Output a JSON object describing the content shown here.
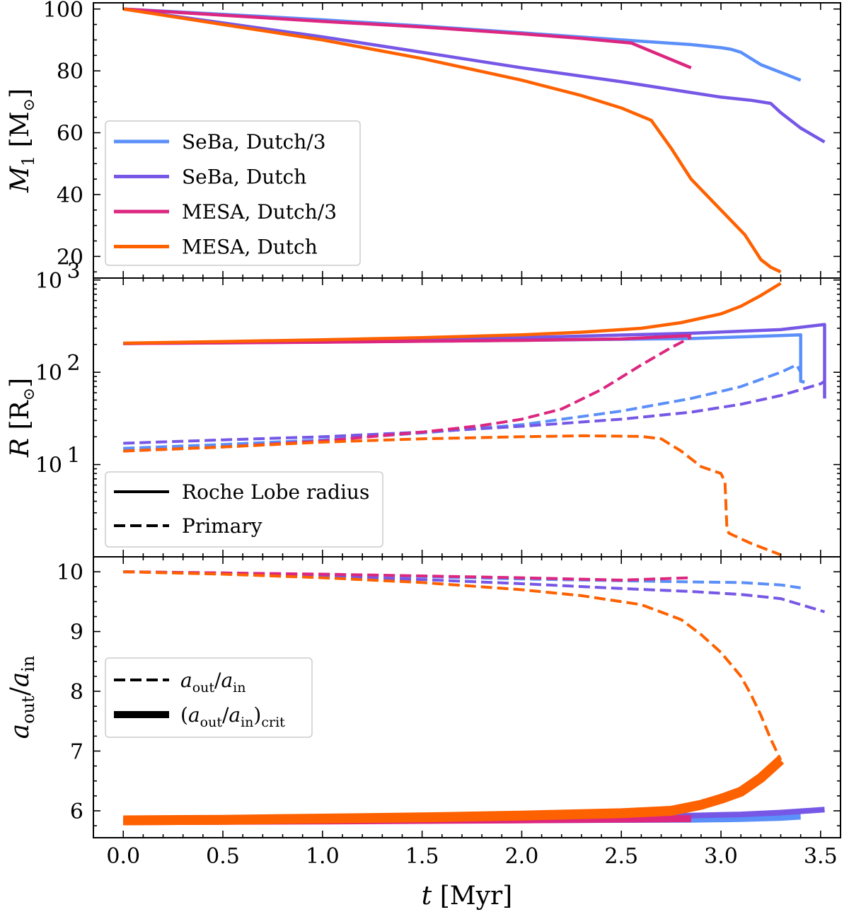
{
  "colors": {
    "seba_dutch3": "#5b8ff9",
    "seba_dutch": "#7657e6",
    "mesa_dutch3": "#dc267f",
    "mesa_dutch": "#fe6100"
  },
  "chart_data": [
    {
      "panel": "top",
      "type": "line",
      "ylabel": "M_1 [M_⊙]",
      "ylabel_main": "M",
      "ylabel_sub": "1",
      "ylabel_unit_open": " [M",
      "ylabel_unit_sub": "⊙",
      "ylabel_unit_close": "]",
      "xlim": [
        -0.15,
        3.6
      ],
      "ylim": [
        13,
        102
      ],
      "yscale": "linear",
      "yticks": [
        20,
        40,
        60,
        80,
        100
      ],
      "ytick_labels": [
        "20",
        "40",
        "60",
        "80",
        "100"
      ],
      "legend": {
        "location": "center-left",
        "entries": [
          {
            "label": "SeBa, Dutch/3",
            "series": "seba_dutch3"
          },
          {
            "label": "SeBa, Dutch",
            "series": "seba_dutch"
          },
          {
            "label": "MESA, Dutch/3",
            "series": "mesa_dutch3"
          },
          {
            "label": "MESA, Dutch",
            "series": "mesa_dutch"
          }
        ]
      },
      "series": [
        {
          "name": "SeBa, Dutch/3",
          "key": "seba_dutch3",
          "style": "solid",
          "x": [
            0,
            0.5,
            1.0,
            1.5,
            2.0,
            2.5,
            2.85,
            3.0,
            3.05,
            3.1,
            3.2,
            3.3,
            3.4
          ],
          "y": [
            100,
            98.3,
            96.5,
            94.5,
            92.3,
            90.0,
            88.5,
            87.5,
            87.0,
            86.0,
            82.0,
            79.5,
            77
          ]
        },
        {
          "name": "SeBa, Dutch",
          "key": "seba_dutch",
          "style": "solid",
          "x": [
            0,
            0.5,
            1.0,
            1.5,
            2.0,
            2.5,
            2.8,
            3.0,
            3.15,
            3.25,
            3.3,
            3.4,
            3.52
          ],
          "y": [
            100,
            95.5,
            91,
            86,
            81,
            76.5,
            73.5,
            71.5,
            70.5,
            69.5,
            66.5,
            61.5,
            57
          ]
        },
        {
          "name": "MESA, Dutch/3",
          "key": "mesa_dutch3",
          "style": "solid",
          "x": [
            0,
            0.5,
            1.0,
            1.5,
            2.0,
            2.3,
            2.55,
            2.85
          ],
          "y": [
            100,
            98,
            96,
            94.2,
            92,
            90.5,
            89,
            81
          ]
        },
        {
          "name": "MESA, Dutch",
          "key": "mesa_dutch",
          "style": "solid",
          "x": [
            0,
            0.5,
            1.0,
            1.5,
            2.0,
            2.3,
            2.5,
            2.65,
            2.75,
            2.85,
            3.0,
            3.12,
            3.2,
            3.25,
            3.3
          ],
          "y": [
            100,
            95,
            90,
            84,
            77,
            72,
            68,
            64,
            55,
            45,
            35,
            27,
            19,
            16.5,
            15
          ]
        }
      ]
    },
    {
      "panel": "middle",
      "type": "line",
      "ylabel": "R [R_⊙]",
      "ylabel_main": "R",
      "ylabel_unit_open": " [R",
      "ylabel_unit_sub": "⊙",
      "ylabel_unit_close": "]",
      "xlim": [
        -0.15,
        3.6
      ],
      "ylim": [
        1,
        1050
      ],
      "yscale": "log",
      "yticks": [
        10,
        100,
        1000
      ],
      "ytick_labels": [
        "10",
        "10",
        "10"
      ],
      "ytick_exponents": [
        "1",
        "2",
        "3"
      ],
      "legend": {
        "location": "bottom-left",
        "entries": [
          {
            "label": "Roche Lobe radius",
            "style": "solid"
          },
          {
            "label": "Primary",
            "style": "dashed"
          }
        ]
      },
      "series": [
        {
          "name": "Roche Lobe radius, SeBa, Dutch/3",
          "key": "seba_dutch3",
          "style": "solid",
          "x": [
            0,
            1.0,
            2.0,
            2.85,
            3.3,
            3.4,
            3.4,
            3.42
          ],
          "y": [
            205,
            213,
            222,
            232,
            250,
            255,
            80,
            78
          ]
        },
        {
          "name": "Roche Lobe radius, SeBa, Dutch",
          "key": "seba_dutch",
          "style": "solid",
          "x": [
            0,
            1.0,
            2.0,
            2.85,
            3.3,
            3.52,
            3.52
          ],
          "y": [
            205,
            220,
            238,
            265,
            290,
            330,
            52
          ]
        },
        {
          "name": "Roche Lobe radius, MESA, Dutch/3",
          "key": "mesa_dutch3",
          "style": "solid",
          "x": [
            0,
            1.0,
            2.0,
            2.5,
            2.85
          ],
          "y": [
            205,
            212,
            222,
            230,
            250
          ]
        },
        {
          "name": "Roche Lobe radius, MESA, Dutch",
          "key": "mesa_dutch",
          "style": "solid",
          "x": [
            0,
            0.5,
            1.0,
            1.5,
            2.0,
            2.3,
            2.6,
            2.8,
            3.0,
            3.1,
            3.2,
            3.3
          ],
          "y": [
            207,
            215,
            225,
            237,
            255,
            272,
            300,
            345,
            430,
            520,
            680,
            920
          ]
        },
        {
          "name": "Primary, SeBa, Dutch/3",
          "key": "seba_dutch3",
          "style": "dashed",
          "x": [
            0,
            0.5,
            1.0,
            1.5,
            2.0,
            2.5,
            2.85,
            3.1,
            3.3,
            3.38,
            3.4
          ],
          "y": [
            15,
            16.5,
            18.5,
            22,
            27,
            38,
            52,
            70,
            100,
            120,
            100
          ]
        },
        {
          "name": "Primary, SeBa, Dutch",
          "key": "seba_dutch",
          "style": "dashed",
          "x": [
            0,
            0.5,
            1.0,
            1.5,
            2.0,
            2.5,
            2.85,
            3.1,
            3.3,
            3.5,
            3.52
          ],
          "y": [
            17,
            18.5,
            20,
            22.5,
            26,
            31,
            37,
            45,
            56,
            75,
            80
          ]
        },
        {
          "name": "Primary, MESA, Dutch/3",
          "key": "mesa_dutch3",
          "style": "dashed",
          "x": [
            0,
            0.5,
            1.0,
            1.5,
            1.8,
            2.0,
            2.2,
            2.4,
            2.6,
            2.75,
            2.85
          ],
          "y": [
            14,
            15.5,
            18,
            22.5,
            26.5,
            31,
            40,
            65,
            120,
            185,
            240
          ]
        },
        {
          "name": "Primary, MESA, Dutch",
          "key": "mesa_dutch",
          "style": "dashed",
          "x": [
            0,
            0.5,
            1.0,
            1.5,
            2.0,
            2.3,
            2.6,
            2.7,
            2.8,
            2.9,
            3.0,
            3.02,
            3.03,
            3.04,
            3.15,
            3.3
          ],
          "y": [
            14,
            15.5,
            17.5,
            19,
            20,
            20.5,
            20.2,
            19,
            14,
            9.5,
            8,
            6.5,
            2,
            1.8,
            1.4,
            1.05
          ]
        }
      ]
    },
    {
      "panel": "bottom",
      "type": "line",
      "ylabel": "a_out/a_in",
      "xlabel": "t [Myr]",
      "xlabel_main": "t",
      "xlabel_unit": " [Myr]",
      "xlim": [
        -0.15,
        3.6
      ],
      "ylim": [
        5.55,
        10.25
      ],
      "yscale": "linear",
      "xticks": [
        0.0,
        0.5,
        1.0,
        1.5,
        2.0,
        2.5,
        3.0,
        3.5
      ],
      "xtick_labels": [
        "0.0",
        "0.5",
        "1.0",
        "1.5",
        "2.0",
        "2.5",
        "3.0",
        "3.5"
      ],
      "yticks": [
        6,
        7,
        8,
        9,
        10
      ],
      "ytick_labels": [
        "6",
        "7",
        "8",
        "9",
        "10"
      ],
      "legend": {
        "location": "center-left",
        "entries": [
          {
            "label": "a_out/a_in",
            "style": "dashed"
          },
          {
            "label": "(a_out/a_in)_crit",
            "style": "thick"
          }
        ]
      },
      "series": [
        {
          "name": "a_out/a_in, SeBa, Dutch/3",
          "key": "seba_dutch3",
          "style": "dashed",
          "x": [
            0,
            0.5,
            1.0,
            1.5,
            2.0,
            2.5,
            2.85,
            3.1,
            3.3,
            3.4
          ],
          "y": [
            10,
            9.98,
            9.95,
            9.92,
            9.88,
            9.85,
            9.83,
            9.82,
            9.78,
            9.73
          ]
        },
        {
          "name": "a_out/a_in, SeBa, Dutch",
          "key": "seba_dutch",
          "style": "dashed",
          "x": [
            0,
            0.5,
            1.0,
            1.5,
            2.0,
            2.5,
            2.85,
            3.1,
            3.3,
            3.52
          ],
          "y": [
            10,
            9.97,
            9.92,
            9.87,
            9.8,
            9.72,
            9.67,
            9.62,
            9.55,
            9.33
          ]
        },
        {
          "name": "a_out/a_in, MESA, Dutch/3",
          "key": "mesa_dutch3",
          "style": "dashed",
          "x": [
            0,
            0.5,
            1.0,
            1.5,
            2.0,
            2.5,
            2.85
          ],
          "y": [
            10,
            9.98,
            9.96,
            9.93,
            9.9,
            9.86,
            9.9
          ]
        },
        {
          "name": "a_out/a_in, MESA, Dutch",
          "key": "mesa_dutch",
          "style": "dashed",
          "x": [
            0,
            0.5,
            1.0,
            1.5,
            2.0,
            2.3,
            2.6,
            2.8,
            2.9,
            3.0,
            3.1,
            3.15,
            3.2,
            3.25,
            3.3
          ],
          "y": [
            10,
            9.96,
            9.9,
            9.82,
            9.7,
            9.6,
            9.45,
            9.2,
            8.95,
            8.65,
            8.25,
            7.95,
            7.6,
            7.2,
            6.85
          ]
        },
        {
          "name": "(a_out/a_in)_crit, SeBa, Dutch/3",
          "key": "seba_dutch3",
          "style": "thick",
          "width": 8,
          "x": [
            0,
            1.0,
            2.0,
            2.85,
            3.1,
            3.3,
            3.4
          ],
          "y": [
            5.82,
            5.83,
            5.84,
            5.85,
            5.86,
            5.88,
            5.9
          ]
        },
        {
          "name": "(a_out/a_in)_crit, SeBa, Dutch",
          "key": "seba_dutch",
          "style": "thick",
          "width": 8,
          "x": [
            0,
            1.0,
            2.0,
            2.85,
            3.1,
            3.3,
            3.52
          ],
          "y": [
            5.84,
            5.86,
            5.89,
            5.92,
            5.94,
            5.97,
            6.02
          ]
        },
        {
          "name": "(a_out/a_in)_crit, MESA, Dutch/3",
          "key": "mesa_dutch3",
          "style": "thick",
          "width": 10,
          "x": [
            0,
            1.0,
            2.0,
            2.5,
            2.85
          ],
          "y": [
            5.82,
            5.83,
            5.85,
            5.86,
            5.87
          ]
        },
        {
          "name": "(a_out/a_in)_crit, MESA, Dutch",
          "key": "mesa_dutch",
          "style": "thick",
          "width": 14,
          "x": [
            0,
            0.5,
            1.0,
            1.5,
            2.0,
            2.5,
            2.75,
            2.9,
            3.0,
            3.1,
            3.2,
            3.3
          ],
          "y": [
            5.84,
            5.85,
            5.87,
            5.89,
            5.92,
            5.96,
            6.0,
            6.1,
            6.2,
            6.32,
            6.55,
            6.85
          ]
        }
      ]
    }
  ]
}
